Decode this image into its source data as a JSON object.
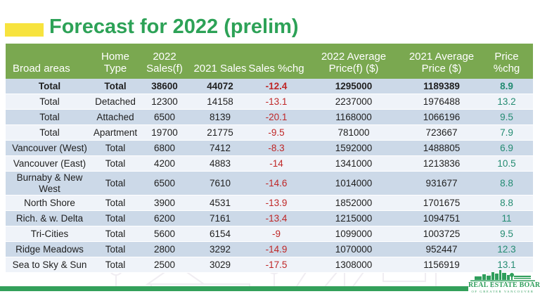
{
  "title": "Forecast for 2022 (prelim)",
  "colors": {
    "title_green": "#2da257",
    "header_green": "#7aa850",
    "row_blue": "#ccd9e8",
    "row_light": "#eff3f9",
    "negative_red": "#bf2626",
    "positive_teal": "#238b71",
    "accent_yellow": "#f7e33e",
    "bottom_bar_green": "#33a05a",
    "logo_green": "#2f9e5b"
  },
  "table": {
    "headers": [
      "Broad areas",
      "Home Type",
      "2022 Sales(f)",
      "2021 Sales",
      "Sales %chg",
      "2022 Average Price(f) ($)",
      "2021 Average Price ($)",
      "Price %chg"
    ],
    "rows": [
      {
        "area": "Total",
        "home_type": "Total",
        "sales_2022": "38600",
        "sales_2021": "44072",
        "sales_pct_chg": "-12.4",
        "avg_price_2022": "1295000",
        "avg_price_2021": "1189389",
        "price_pct_chg": "8.9",
        "bold": true
      },
      {
        "area": "Total",
        "home_type": "Detached",
        "sales_2022": "12300",
        "sales_2021": "14158",
        "sales_pct_chg": "-13.1",
        "avg_price_2022": "2237000",
        "avg_price_2021": "1976488",
        "price_pct_chg": "13.2",
        "bold": false
      },
      {
        "area": "Total",
        "home_type": "Attached",
        "sales_2022": "6500",
        "sales_2021": "8139",
        "sales_pct_chg": "-20.1",
        "avg_price_2022": "1168000",
        "avg_price_2021": "1066196",
        "price_pct_chg": "9.5",
        "bold": false
      },
      {
        "area": "Total",
        "home_type": "Apartment",
        "sales_2022": "19700",
        "sales_2021": "21775",
        "sales_pct_chg": "-9.5",
        "avg_price_2022": "781000",
        "avg_price_2021": "723667",
        "price_pct_chg": "7.9",
        "bold": false
      },
      {
        "area": "Vancouver (West)",
        "home_type": "Total",
        "sales_2022": "6800",
        "sales_2021": "7412",
        "sales_pct_chg": "-8.3",
        "avg_price_2022": "1592000",
        "avg_price_2021": "1488805",
        "price_pct_chg": "6.9",
        "bold": false
      },
      {
        "area": "Vancouver (East)",
        "home_type": "Total",
        "sales_2022": "4200",
        "sales_2021": "4883",
        "sales_pct_chg": "-14",
        "avg_price_2022": "1341000",
        "avg_price_2021": "1213836",
        "price_pct_chg": "10.5",
        "bold": false
      },
      {
        "area": "Burnaby & New West",
        "home_type": "Total",
        "sales_2022": "6500",
        "sales_2021": "7610",
        "sales_pct_chg": "-14.6",
        "avg_price_2022": "1014000",
        "avg_price_2021": "931677",
        "price_pct_chg": "8.8",
        "bold": false
      },
      {
        "area": "North Shore",
        "home_type": "Total",
        "sales_2022": "3900",
        "sales_2021": "4531",
        "sales_pct_chg": "-13.9",
        "avg_price_2022": "1852000",
        "avg_price_2021": "1701675",
        "price_pct_chg": "8.8",
        "bold": false
      },
      {
        "area": "Rich. & w. Delta",
        "home_type": "Total",
        "sales_2022": "6200",
        "sales_2021": "7161",
        "sales_pct_chg": "-13.4",
        "avg_price_2022": "1215000",
        "avg_price_2021": "1094751",
        "price_pct_chg": "11",
        "bold": false
      },
      {
        "area": "Tri-Cities",
        "home_type": "Total",
        "sales_2022": "5600",
        "sales_2021": "6154",
        "sales_pct_chg": "-9",
        "avg_price_2022": "1099000",
        "avg_price_2021": "1003725",
        "price_pct_chg": "9.5",
        "bold": false
      },
      {
        "area": "Ridge Meadows",
        "home_type": "Total",
        "sales_2022": "2800",
        "sales_2021": "3292",
        "sales_pct_chg": "-14.9",
        "avg_price_2022": "1070000",
        "avg_price_2021": "952447",
        "price_pct_chg": "12.3",
        "bold": false
      },
      {
        "area": "Sea to Sky & Sun",
        "home_type": "Total",
        "sales_2022": "2500",
        "sales_2021": "3029",
        "sales_pct_chg": "-17.5",
        "avg_price_2022": "1308000",
        "avg_price_2021": "1156919",
        "price_pct_chg": "13.1",
        "bold": false
      }
    ]
  },
  "footer": {
    "logo_line1": "REAL ESTATE BOARD",
    "logo_line2": "OF GREATER VANCOUVER"
  }
}
